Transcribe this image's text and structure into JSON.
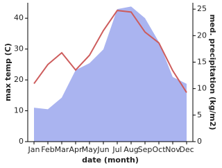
{
  "chart_data": {
    "type": "line",
    "xlabel": "date (month)",
    "ylabel": "max temp (C)",
    "y2label": "med. precipitation (kg/m2)",
    "categories": [
      "Jan",
      "Feb",
      "Mar",
      "Apr",
      "May",
      "Jun",
      "Jul",
      "Aug",
      "Sep",
      "Oct",
      "Nov",
      "Dec"
    ],
    "series": [
      {
        "kind": "area",
        "axis": "y2",
        "color": "#aab4f0",
        "values": [
          6.4,
          6.1,
          8.3,
          13.5,
          14.8,
          17.4,
          25,
          25.5,
          23.3,
          18.8,
          12.2,
          10.9
        ]
      },
      {
        "kind": "line",
        "axis": "y",
        "color": "#cd5c5c",
        "values": [
          18.8,
          25,
          28.8,
          23.2,
          28,
          36,
          42.5,
          42,
          35.5,
          32,
          23,
          15.9
        ]
      }
    ],
    "ylim": [
      0,
      45
    ],
    "yticks": [
      0,
      10,
      20,
      30,
      40
    ],
    "y2lim": [
      0,
      26.2
    ],
    "y2ticks": [
      0,
      5,
      10,
      15,
      20,
      25
    ]
  }
}
